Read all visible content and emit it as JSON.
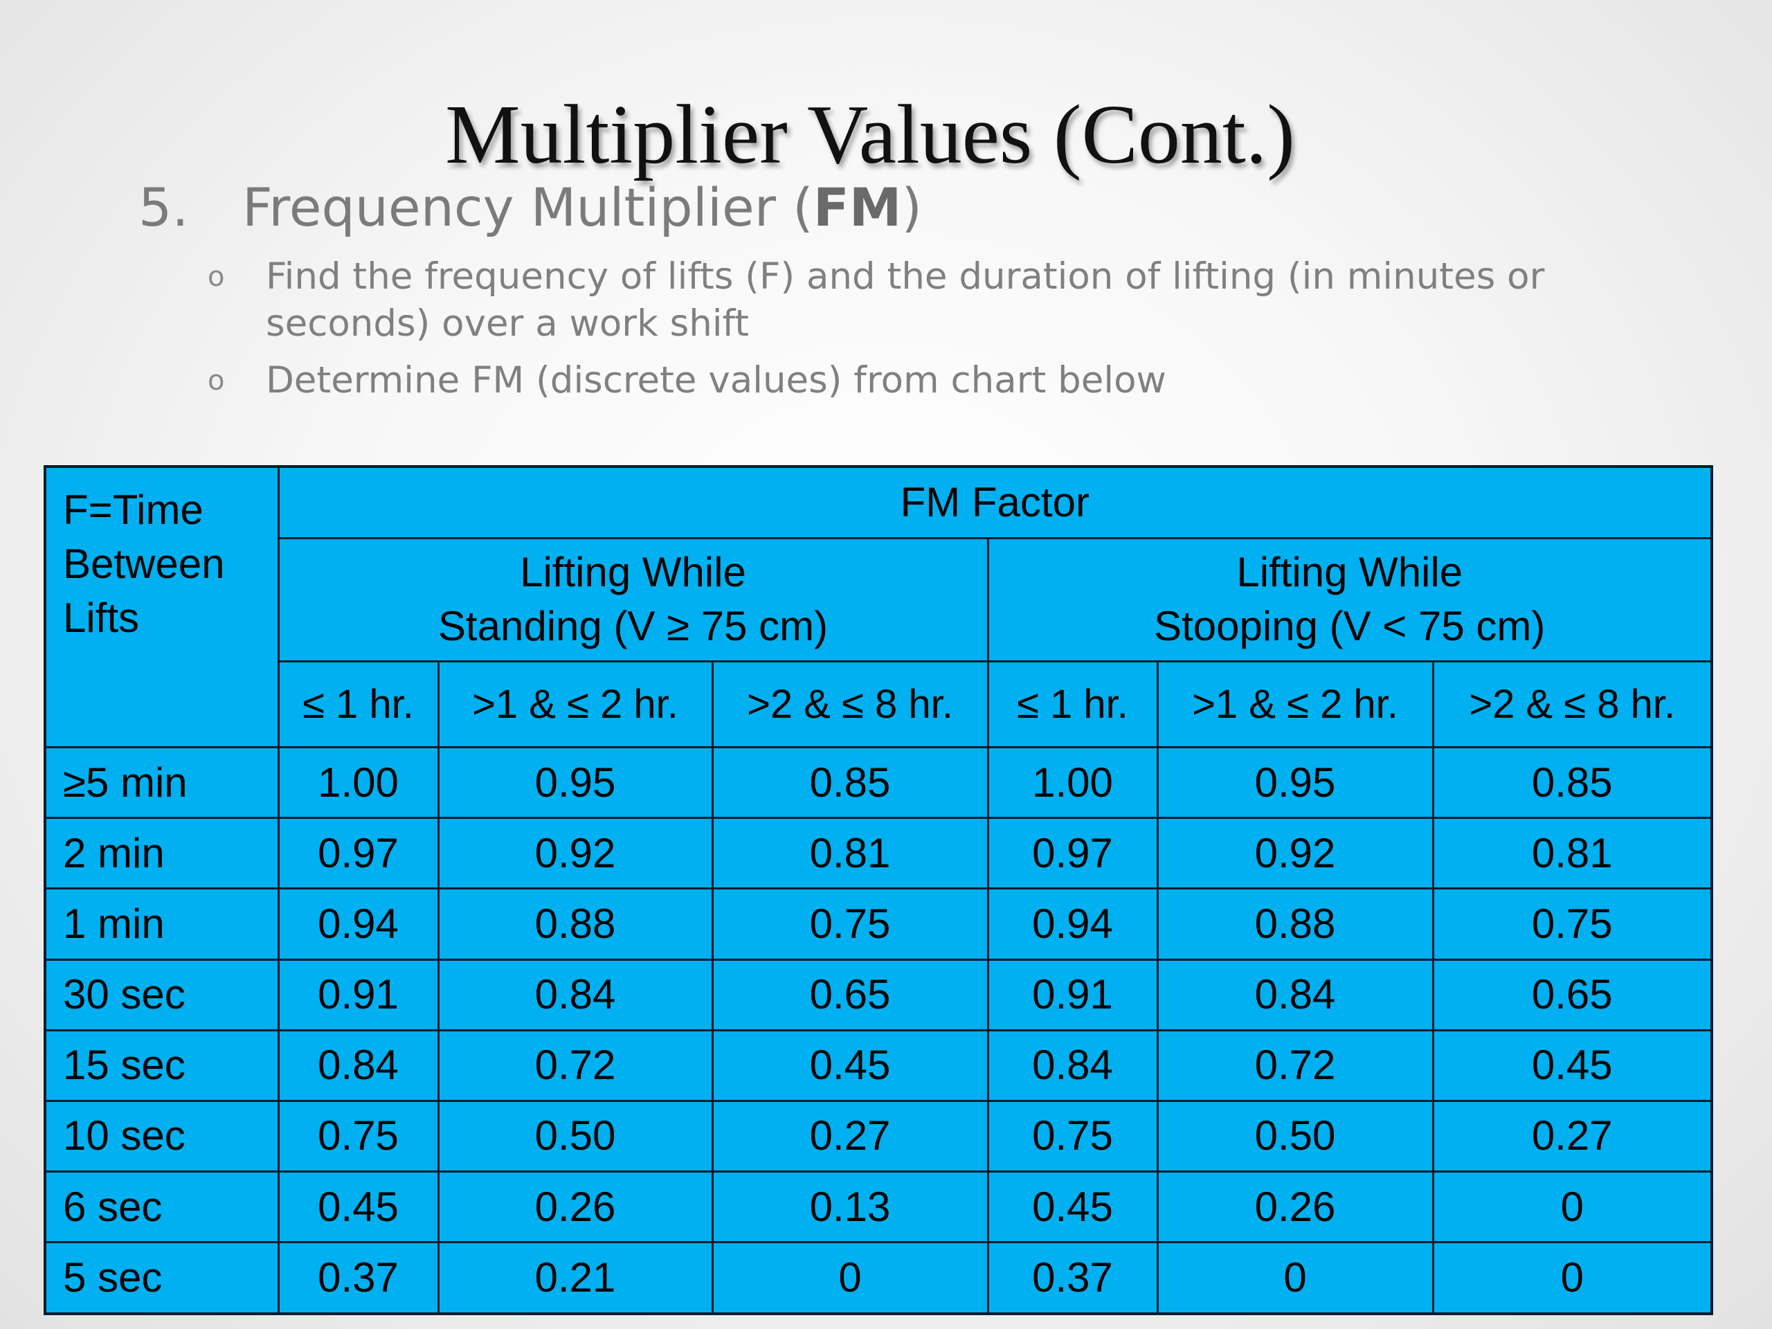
{
  "slide": {
    "title": "Multiplier Values (Cont.)",
    "heading_number": "5.",
    "heading_text": "Frequency Multiplier (",
    "heading_bold": "FM",
    "heading_close": ")",
    "bullet_marker": "o",
    "bullets": [
      "Find the frequency of lifts (F) and the duration of lifting (in minutes or seconds) over a work shift",
      "Determine FM (discrete values) from chart below"
    ]
  },
  "table": {
    "corner_header": "F=Time Between Lifts",
    "group_header": "FM Factor",
    "sub_headers": [
      {
        "line1": "Lifting While",
        "line2": "Standing (V ≥ 75 cm)"
      },
      {
        "line1": "Lifting While",
        "line2": "Stooping (V < 75 cm)"
      }
    ],
    "column_headers": [
      "≤ 1 hr.",
      ">1 & ≤ 2 hr.",
      ">2 & ≤ 8 hr.",
      "≤ 1 hr.",
      ">1 & ≤ 2 hr.",
      ">2 & ≤ 8 hr."
    ],
    "rows": [
      {
        "label": "≥5 min",
        "values": [
          "1.00",
          "0.95",
          "0.85",
          "1.00",
          "0.95",
          "0.85"
        ]
      },
      {
        "label": "2 min",
        "values": [
          "0.97",
          "0.92",
          "0.81",
          "0.97",
          "0.92",
          "0.81"
        ]
      },
      {
        "label": "1 min",
        "values": [
          "0.94",
          "0.88",
          "0.75",
          "0.94",
          "0.88",
          "0.75"
        ]
      },
      {
        "label": "30 sec",
        "values": [
          "0.91",
          "0.84",
          "0.65",
          "0.91",
          "0.84",
          "0.65"
        ]
      },
      {
        "label": "15 sec",
        "values": [
          "0.84",
          "0.72",
          "0.45",
          "0.84",
          "0.72",
          "0.45"
        ]
      },
      {
        "label": "10 sec",
        "values": [
          "0.75",
          "0.50",
          "0.27",
          "0.75",
          "0.50",
          "0.27"
        ]
      },
      {
        "label": "6 sec",
        "values": [
          "0.45",
          "0.26",
          "0.13",
          "0.45",
          "0.26",
          "0"
        ]
      },
      {
        "label": "5 sec",
        "values": [
          "0.37",
          "0.21",
          "0",
          "0.37",
          "0",
          "0"
        ]
      }
    ]
  },
  "colors": {
    "table_fill": "#00b0f0",
    "table_border": "#0b1b2e",
    "title_text": "#111111",
    "body_text": "#808080"
  }
}
